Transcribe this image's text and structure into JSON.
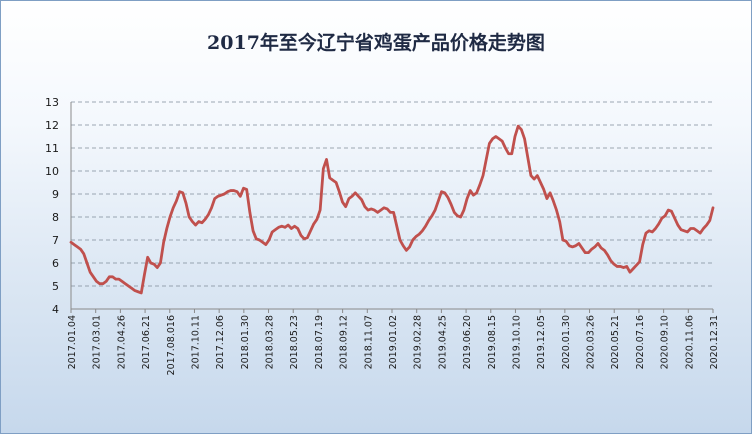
{
  "chart_data": {
    "type": "line",
    "title": "2017年至今辽宁省鸡蛋产品价格走势图",
    "xlabel": "",
    "ylabel": "",
    "ylim": [
      4,
      13
    ],
    "y_ticks": [
      4,
      5,
      6,
      7,
      8,
      9,
      10,
      11,
      12,
      13
    ],
    "grid": true,
    "legend": "none",
    "x_tick_labels": [
      "2017.01.04",
      "2017.03.01",
      "2017.04.26",
      "2017.06.21",
      "2017.08.016",
      "2017.10.11",
      "2017.12.06",
      "2018.01.30",
      "2018.03.28",
      "2018.05.23",
      "2018.07.19",
      "2018.09.12",
      "2018.11.07",
      "2019.01.02",
      "2019.02.28",
      "2019.04.25",
      "2019.06.20",
      "2019.08.15",
      "2019.10.10",
      "2019.12.05",
      "2020.01.30",
      "2020.03.26",
      "2020.05.21",
      "2020.07.16",
      "2020.09.10",
      "2020.11.06",
      "2020.12.31"
    ],
    "series": [
      {
        "color": "#c0504d",
        "values": [
          6.9,
          6.8,
          6.7,
          6.6,
          6.4,
          6.0,
          5.6,
          5.4,
          5.2,
          5.1,
          5.1,
          5.2,
          5.4,
          5.4,
          5.3,
          5.3,
          5.2,
          5.1,
          5.0,
          4.9,
          4.8,
          4.75,
          4.7,
          5.5,
          6.25,
          6.0,
          5.95,
          5.8,
          6.0,
          6.9,
          7.5,
          8.0,
          8.4,
          8.7,
          9.1,
          9.05,
          8.6,
          8.0,
          7.8,
          7.65,
          7.8,
          7.75,
          7.9,
          8.1,
          8.4,
          8.8,
          8.9,
          8.95,
          9.0,
          9.1,
          9.15,
          9.15,
          9.1,
          8.9,
          9.25,
          9.2,
          8.2,
          7.4,
          7.05,
          7.0,
          6.9,
          6.8,
          7.0,
          7.35,
          7.45,
          7.55,
          7.6,
          7.55,
          7.65,
          7.5,
          7.6,
          7.5,
          7.2,
          7.05,
          7.1,
          7.4,
          7.7,
          7.9,
          8.3,
          10.1,
          10.5,
          9.7,
          9.6,
          9.5,
          9.1,
          8.65,
          8.45,
          8.8,
          8.9,
          9.05,
          8.9,
          8.75,
          8.45,
          8.3,
          8.35,
          8.3,
          8.2,
          8.3,
          8.4,
          8.35,
          8.2,
          8.2,
          7.6,
          7.0,
          6.75,
          6.55,
          6.7,
          7.0,
          7.15,
          7.25,
          7.4,
          7.6,
          7.85,
          8.05,
          8.3,
          8.7,
          9.1,
          9.05,
          8.85,
          8.55,
          8.2,
          8.05,
          8.0,
          8.3,
          8.8,
          9.15,
          8.95,
          9.05,
          9.4,
          9.8,
          10.5,
          11.2,
          11.4,
          11.5,
          11.4,
          11.3,
          11.0,
          10.75,
          10.75,
          11.5,
          11.95,
          11.8,
          11.4,
          10.6,
          9.8,
          9.65,
          9.8,
          9.5,
          9.2,
          8.8,
          9.05,
          8.7,
          8.3,
          7.8,
          7.0,
          6.95,
          6.75,
          6.7,
          6.75,
          6.85,
          6.65,
          6.45,
          6.45,
          6.6,
          6.7,
          6.85,
          6.65,
          6.55,
          6.35,
          6.1,
          5.95,
          5.85,
          5.85,
          5.8,
          5.85,
          5.6,
          5.75,
          5.9,
          6.05,
          6.8,
          7.3,
          7.4,
          7.35,
          7.5,
          7.7,
          7.95,
          8.05,
          8.3,
          8.25,
          7.95,
          7.65,
          7.45,
          7.4,
          7.35,
          7.5,
          7.5,
          7.4,
          7.3,
          7.5,
          7.65,
          7.85,
          8.4
        ]
      }
    ]
  }
}
